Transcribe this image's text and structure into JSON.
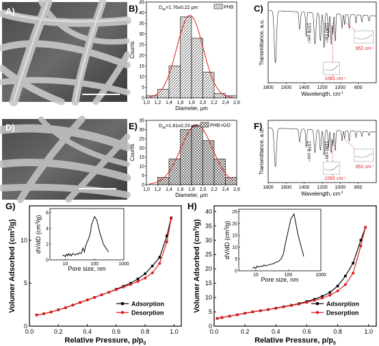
{
  "panels": {
    "A": "A)",
    "B": "B)",
    "C": "C)",
    "D": "D)",
    "E": "E)",
    "F": "F)",
    "G": "G)",
    "H": "H)"
  },
  "chart_data": [
    {
      "id": "B",
      "type": "bar",
      "legend": "PHB",
      "annotation_main": "D",
      "annotation_sub": "av",
      "annotation_value": "=1.76±0.22 µm",
      "categories": [
        1.1,
        1.3,
        1.5,
        1.7,
        1.9,
        2.1,
        2.3,
        2.5
      ],
      "values": [
        1,
        4,
        15,
        38,
        28,
        12,
        2,
        1
      ],
      "xlim": [
        1.0,
        2.6
      ],
      "xticks": [
        "1,0",
        "1,2",
        "1,4",
        "1,6",
        "1,8",
        "2,0",
        "2,2",
        "2,4",
        "2,6"
      ],
      "ylim": [
        0,
        45
      ],
      "yticks": [
        "0",
        "5",
        "10",
        "15",
        "20",
        "25",
        "30",
        "35",
        "40",
        "45"
      ],
      "xlabel": "Diameter, µm",
      "ylabel": "Counts"
    },
    {
      "id": "E",
      "type": "bar",
      "legend": "PHB-rGO",
      "annotation_main": "D",
      "annotation_sub": "av",
      "annotation_value": "=1.81±0.23 µm",
      "categories": [
        1.3,
        1.5,
        1.7,
        1.9,
        2.1,
        2.3,
        2.5
      ],
      "values": [
        4,
        14,
        30,
        32,
        24,
        14,
        4
      ],
      "xlim": [
        1.0,
        2.6
      ],
      "xticks": [
        "1,0",
        "1,2",
        "1,4",
        "1,6",
        "1,8",
        "2,0",
        "2,2",
        "2,4",
        "2,6"
      ],
      "ylim": [
        0,
        35
      ],
      "yticks": [
        "0",
        "5",
        "10",
        "15",
        "20",
        "25",
        "30",
        "35"
      ],
      "xlabel": "Diameter, µm",
      "ylabel": "Counts"
    },
    {
      "id": "C",
      "type": "line",
      "xlabel": "Wavelength, cm",
      "xlabel_sup": "-1",
      "ylabel": "Transmittance, a.u.",
      "xlim": [
        1800,
        600
      ],
      "xticks": [
        "1800",
        "1600",
        "1400",
        "1200",
        "1000",
        "800"
      ],
      "annotations": [
        "1378 cm",
        "1180 cm",
        "1081 cm",
        "952 cm"
      ],
      "annotation_sup": "-1"
    },
    {
      "id": "F",
      "type": "line",
      "xlabel": "Wavelength, cm",
      "xlabel_sup": "-1",
      "ylabel": "Transmittance, a.u.",
      "xlim": [
        1800,
        600
      ],
      "xticks": [
        "1800",
        "1600",
        "1400",
        "1200",
        "1000",
        "800"
      ],
      "annotations": [
        "1378 cm",
        "1180 cm",
        "1081 cm",
        "952 cm"
      ],
      "annotation_sup": "-1"
    },
    {
      "id": "G",
      "type": "line",
      "xlabel": "Relative Pressure, p/p",
      "xlabel_sub": "0",
      "ylabel": "Volumer Adsorbed (cm",
      "ylabel_sup": "3",
      "ylabel_end": "/g)",
      "xlim": [
        0,
        1.05
      ],
      "ylim": [
        0,
        14
      ],
      "xticks": [
        "0.0",
        "0.2",
        "0.4",
        "0.6",
        "0.8",
        "1.0"
      ],
      "yticks": [
        "0",
        "5",
        "10"
      ],
      "series": [
        {
          "name": "Adsorption",
          "color": "#000000",
          "x": [
            0.05,
            0.1,
            0.15,
            0.2,
            0.25,
            0.3,
            0.35,
            0.4,
            0.45,
            0.5,
            0.55,
            0.6,
            0.65,
            0.7,
            0.75,
            0.8,
            0.85,
            0.9,
            0.95,
            0.98
          ],
          "y": [
            1.3,
            1.45,
            1.65,
            1.9,
            2.15,
            2.45,
            2.75,
            3.05,
            3.35,
            3.65,
            3.95,
            4.3,
            4.65,
            5.0,
            5.5,
            6.1,
            7.0,
            8.0,
            10.5,
            12.6
          ]
        },
        {
          "name": "Desorption",
          "color": "#e31a1c",
          "x": [
            0.05,
            0.1,
            0.15,
            0.2,
            0.25,
            0.3,
            0.35,
            0.4,
            0.45,
            0.5,
            0.55,
            0.6,
            0.65,
            0.7,
            0.75,
            0.8,
            0.85,
            0.9,
            0.95,
            0.98
          ],
          "y": [
            1.3,
            1.45,
            1.65,
            1.9,
            2.15,
            2.45,
            2.75,
            3.05,
            3.35,
            3.65,
            3.95,
            4.25,
            4.55,
            4.85,
            5.2,
            5.6,
            6.2,
            7.3,
            9.8,
            12.5
          ]
        }
      ],
      "inset": {
        "xlabel": "Pore size, nm",
        "ylabel": "dV/dD (cm",
        "ylabel_sup": "3",
        "ylabel_end": "/g)",
        "xticks": [
          "10",
          "100",
          "1000"
        ],
        "yticks": [
          "0",
          "2",
          "4",
          "6"
        ],
        "ylim": [
          0,
          6.5
        ],
        "xlog": [
          3,
          1000
        ],
        "x": [
          8,
          9,
          10,
          11,
          12,
          13,
          14,
          15,
          16,
          18,
          20,
          22,
          25,
          28,
          30,
          35,
          40,
          45,
          50,
          60,
          70,
          80,
          100,
          120,
          150,
          200,
          300
        ],
        "y": [
          0.5,
          0.6,
          0.4,
          0.7,
          0.5,
          0.8,
          0.6,
          0.7,
          0.5,
          0.8,
          0.7,
          0.6,
          0.8,
          0.7,
          0.9,
          0.8,
          1.5,
          1.0,
          1.8,
          2.5,
          3.2,
          4.5,
          5.5,
          5.0,
          3.5,
          2.0,
          1.0
        ]
      }
    },
    {
      "id": "H",
      "type": "line",
      "xlabel": "Relative Pressure, p/p",
      "xlabel_sub": "0",
      "ylabel": "Volumer Adsorbed (cm",
      "ylabel_sup": "3",
      "ylabel_end": "/g)",
      "xlim": [
        0,
        1.05
      ],
      "ylim": [
        0,
        42
      ],
      "xticks": [
        "0.0",
        "0.2",
        "0.4",
        "0.6",
        "0.8",
        "1.0"
      ],
      "yticks": [
        "0",
        "5",
        "10",
        "15",
        "20",
        "25",
        "30",
        "35",
        "40"
      ],
      "series": [
        {
          "name": "Adsorption",
          "color": "#000000",
          "x": [
            0.02,
            0.05,
            0.1,
            0.15,
            0.2,
            0.25,
            0.3,
            0.35,
            0.4,
            0.45,
            0.5,
            0.55,
            0.6,
            0.65,
            0.7,
            0.75,
            0.8,
            0.85,
            0.9,
            0.95,
            0.98
          ],
          "y": [
            2.7,
            3.0,
            3.5,
            4.0,
            4.5,
            5.0,
            5.4,
            5.8,
            6.3,
            6.8,
            7.3,
            7.9,
            8.6,
            9.4,
            10.4,
            11.8,
            14.0,
            17.5,
            22.0,
            30.0,
            34.5
          ]
        },
        {
          "name": "Desorption",
          "color": "#e31a1c",
          "x": [
            0.02,
            0.05,
            0.1,
            0.15,
            0.2,
            0.25,
            0.3,
            0.35,
            0.4,
            0.45,
            0.5,
            0.55,
            0.6,
            0.65,
            0.7,
            0.75,
            0.8,
            0.85,
            0.9,
            0.95,
            0.98
          ],
          "y": [
            2.7,
            3.0,
            3.5,
            4.0,
            4.5,
            5.0,
            5.4,
            5.8,
            6.2,
            6.7,
            7.2,
            7.7,
            8.3,
            9.0,
            9.8,
            10.8,
            12.3,
            14.5,
            18.5,
            28.0,
            34.5
          ]
        }
      ],
      "inset": {
        "xlabel": "Pore size, nm",
        "ylabel": "dV/dD (cm",
        "ylabel_sup": "3",
        "ylabel_end": "/g)",
        "xticks": [
          "10",
          "100",
          "1000"
        ],
        "yticks": [
          "0",
          "5",
          "10",
          "15",
          "20",
          "25"
        ],
        "ylim": [
          0,
          26
        ],
        "xlog": [
          3,
          1000
        ],
        "x": [
          8,
          9,
          10,
          11,
          12,
          14,
          16,
          18,
          20,
          25,
          30,
          35,
          40,
          50,
          60,
          70,
          80,
          100,
          120,
          150,
          200,
          300
        ],
        "y": [
          1,
          1.5,
          1,
          2,
          1.5,
          2,
          1.8,
          2.5,
          2,
          2.5,
          2.8,
          3,
          3.5,
          4,
          5,
          7,
          11,
          17,
          22,
          24,
          15,
          6
        ]
      }
    }
  ]
}
